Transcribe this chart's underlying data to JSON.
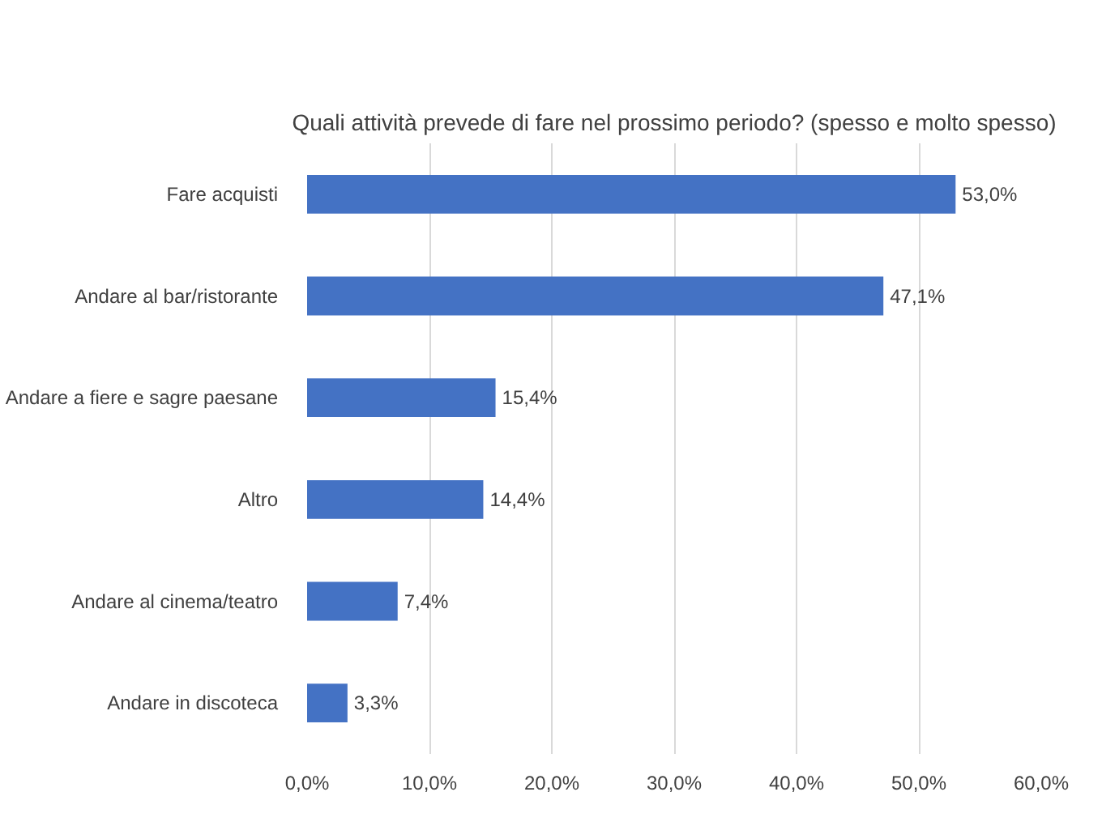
{
  "chart_data": {
    "type": "bar",
    "orientation": "horizontal",
    "title": "Quali attività prevede di fare nel prossimo periodo? (spesso e molto spesso)",
    "categories": [
      "Fare acquisti",
      "Andare al bar/ristorante",
      "Andare a fiere e sagre paesane",
      "Altro",
      "Andare al cinema/teatro",
      "Andare in discoteca"
    ],
    "values": [
      53.0,
      47.1,
      15.4,
      14.4,
      7.4,
      3.3
    ],
    "value_labels": [
      "53,0%",
      "47,1%",
      "15,4%",
      "14,4%",
      "7,4%",
      "3,3%"
    ],
    "color": "#4472c4",
    "xlim": [
      0,
      60
    ],
    "xticks": [
      {
        "value": 0,
        "label": "0,0%"
      },
      {
        "value": 10,
        "label": "10,0%"
      },
      {
        "value": 20,
        "label": "20,0%"
      },
      {
        "value": 30,
        "label": "30,0%"
      },
      {
        "value": 40,
        "label": "40,0%"
      },
      {
        "value": 50,
        "label": "50,0%"
      },
      {
        "value": 60,
        "label": "60,0%"
      }
    ],
    "grid": "x"
  }
}
